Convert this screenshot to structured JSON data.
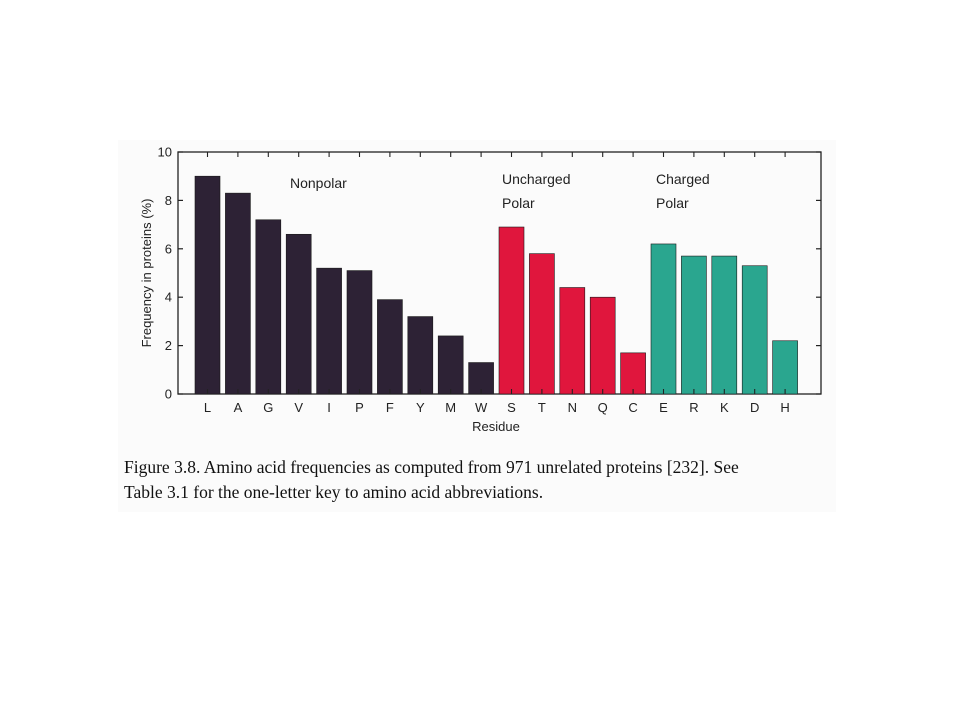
{
  "chart_data": {
    "type": "bar",
    "categories": [
      "L",
      "A",
      "G",
      "V",
      "I",
      "P",
      "F",
      "Y",
      "M",
      "W",
      "S",
      "T",
      "N",
      "Q",
      "C",
      "E",
      "R",
      "K",
      "D",
      "H"
    ],
    "values": [
      9.0,
      8.3,
      7.2,
      6.6,
      5.2,
      5.1,
      3.9,
      3.2,
      2.4,
      1.3,
      6.9,
      5.8,
      4.4,
      4.0,
      1.7,
      6.2,
      5.7,
      5.7,
      5.3,
      2.2
    ],
    "groups": [
      {
        "line1": "Nonpolar",
        "line2": "",
        "start": 0,
        "end": 9,
        "color": "#2d2235"
      },
      {
        "line1": "Uncharged",
        "line2": "Polar",
        "start": 10,
        "end": 14,
        "color": "#e0163d"
      },
      {
        "line1": "Charged",
        "line2": "Polar",
        "start": 15,
        "end": 19,
        "color": "#2aa68f"
      }
    ],
    "xlabel": "Residue",
    "ylabel": "Frequency in proteins (%)",
    "ylim": [
      0,
      10
    ],
    "yticks": [
      0,
      2,
      4,
      6,
      8,
      10
    ],
    "grid": false
  },
  "caption": {
    "line1": "Figure 3.8. Amino acid frequencies as computed from 971 unrelated proteins [232]. See",
    "line2": "Table 3.1 for the one-letter key to amino acid abbreviations."
  }
}
